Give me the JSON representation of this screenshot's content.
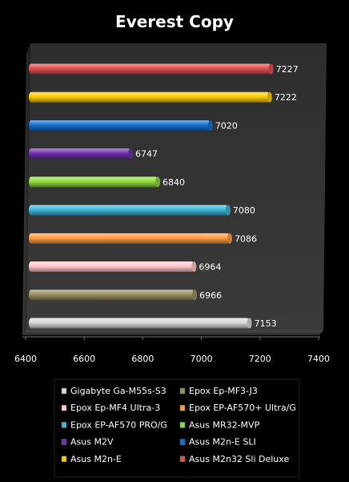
{
  "chart_data": {
    "type": "bar",
    "orientation": "horizontal",
    "title": "Everest Copy",
    "xlim": [
      6400,
      7400
    ],
    "xticks": [
      6400,
      6600,
      6800,
      7000,
      7200,
      7400
    ],
    "grid": false,
    "legend": "bottom",
    "series": [
      {
        "name": "Gigabyte Ga-M55s-S3",
        "value": 7153,
        "color": "#d8d8d8"
      },
      {
        "name": "Epox Ep-MF3-J3",
        "value": 6966,
        "color": "#9a9060"
      },
      {
        "name": "Epox Ep-MF4 Ultra-3",
        "value": 6964,
        "color": "#ffc8cc"
      },
      {
        "name": "Epox EP-AF570+ Ultra/G",
        "value": 7086,
        "color": "#ff9c40"
      },
      {
        "name": "Epox EP-AF570 PRO/G",
        "value": 7080,
        "color": "#40b8d8"
      },
      {
        "name": "Asus MR32-MVP",
        "value": 6840,
        "color": "#90dc40"
      },
      {
        "name": "Asus M2V",
        "value": 6747,
        "color": "#7030b0"
      },
      {
        "name": "Asus M2n-E SLI",
        "value": 7020,
        "color": "#1870d0"
      },
      {
        "name": "Asus M2n-E",
        "value": 7222,
        "color": "#ffcc00"
      },
      {
        "name": "Asus M2n32 Sli Deluxe",
        "value": 7227,
        "color": "#e05050"
      }
    ]
  }
}
